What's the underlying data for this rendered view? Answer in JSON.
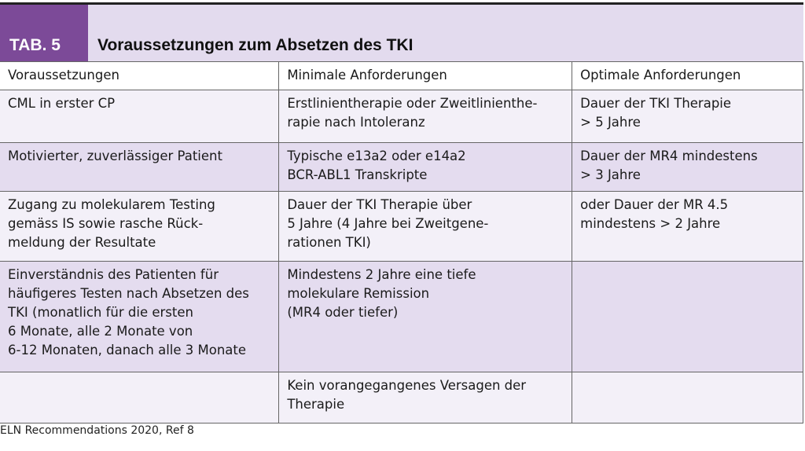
{
  "title": {
    "tab_label": "TAB. 5",
    "heading": "Voraussetzungen zum Absetzen des TKI"
  },
  "columns": [
    "Voraussetzungen",
    "Minimale Anforderungen",
    "Optimale Anforderungen"
  ],
  "rows": [
    [
      "CML in erster CP",
      "Erstlinientherapie oder Zweitlinienthe-\nrapie nach Intoleranz",
      "Dauer der TKI Therapie\n> 5 Jahre"
    ],
    [
      "Motivierter, zuverlässiger Patient",
      "Typische e13a2 oder e14a2\nBCR-ABL1 Transkripte",
      "Dauer der MR4 mindestens\n> 3 Jahre"
    ],
    [
      "Zugang zu molekularem Testing\ngemäss IS sowie rasche Rück-\nmeldung der Resultate",
      "Dauer der TKI Therapie über\n5 Jahre (4 Jahre bei Zweitgene-\nrationen TKI)",
      "oder Dauer der MR 4.5\nmindestens > 2 Jahre"
    ],
    [
      "Einverständnis des Patienten für\nhäufigeres Testen nach Absetzen des\nTKI (monatlich für die ersten\n6 Monate, alle 2 Monate von\n6-12 Monaten, danach alle 3 Monate",
      "Mindestens 2 Jahre eine tiefe\nmolekulare Remission\n(MR4 oder tiefer)",
      ""
    ],
    [
      "",
      "Kein vorangegangenes Versagen der\nTherapie",
      ""
    ]
  ],
  "footnote": "ELN Recommendations 2020, Ref 8",
  "colors": {
    "tab": "#7c4a98",
    "band": "#e3dbee",
    "row_dark": "#e4dcef",
    "row_light": "#f3f0f8"
  }
}
